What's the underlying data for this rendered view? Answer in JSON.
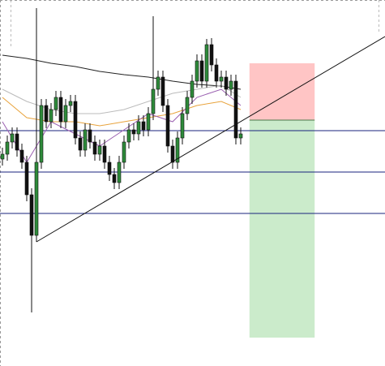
{
  "chart_data": {
    "type": "candlestick",
    "open": [
      255,
      261,
      276,
      286,
      266,
      251,
      211,
      161,
      251,
      321,
      301,
      316,
      331,
      301,
      321,
      326,
      281,
      266,
      291,
      276,
      261,
      271,
      251,
      236,
      226,
      251,
      276,
      291,
      286,
      301,
      291,
      311,
      341,
      356,
      321,
      271,
      251,
      281,
      311,
      331,
      351,
      376,
      351,
      396,
      371,
      351,
      356,
      341,
      351,
      281
    ],
    "high": [
      269,
      284,
      294,
      294,
      274,
      259,
      219,
      441,
      329,
      329,
      324,
      339,
      339,
      329,
      334,
      334,
      289,
      299,
      299,
      284,
      279,
      279,
      259,
      244,
      259,
      284,
      299,
      299,
      309,
      309,
      319,
      431,
      364,
      364,
      329,
      279,
      289,
      319,
      339,
      359,
      384,
      384,
      403,
      404,
      379,
      364,
      364,
      359,
      359,
      294
    ],
    "low": [
      247,
      253,
      268,
      258,
      243,
      203,
      66,
      153,
      243,
      293,
      293,
      308,
      293,
      293,
      313,
      273,
      258,
      258,
      268,
      253,
      253,
      243,
      228,
      218,
      218,
      243,
      268,
      278,
      278,
      283,
      283,
      303,
      333,
      313,
      263,
      243,
      243,
      273,
      303,
      323,
      343,
      343,
      343,
      363,
      343,
      343,
      333,
      333,
      273,
      273
    ],
    "close": [
      261,
      276,
      286,
      266,
      251,
      211,
      161,
      251,
      321,
      301,
      316,
      331,
      301,
      321,
      326,
      281,
      266,
      291,
      276,
      261,
      271,
      251,
      236,
      226,
      251,
      276,
      291,
      286,
      301,
      291,
      311,
      341,
      356,
      321,
      271,
      251,
      281,
      311,
      331,
      351,
      376,
      351,
      396,
      371,
      351,
      356,
      341,
      351,
      281,
      286
    ],
    "up_color": "#2e8b3a",
    "down_color": "#111111",
    "ylim": [
      0,
      451
    ],
    "moving_averages": [
      {
        "color": "#222222",
        "x": [
          0,
          5,
          10,
          15,
          20,
          25,
          30,
          35,
          40,
          45,
          49
        ],
        "values": [
          383,
          379,
          373,
          369,
          363,
          359,
          356,
          351,
          347,
          345,
          341
        ]
      },
      {
        "color": "#bbbbbb",
        "x": [
          0,
          5,
          10,
          15,
          20,
          25,
          30,
          35,
          40,
          45,
          49
        ],
        "values": [
          341,
          326,
          316,
          311,
          311,
          316,
          326,
          336,
          341,
          346,
          331
        ]
      },
      {
        "color": "#e8a33c",
        "x": [
          0,
          5,
          10,
          15,
          20,
          25,
          30,
          35,
          40,
          45,
          49
        ],
        "values": [
          331,
          306,
          301,
          301,
          296,
          301,
          306,
          311,
          321,
          326,
          316
        ]
      },
      {
        "color": "#9a5fb0",
        "x": [
          0,
          5,
          10,
          15,
          20,
          25,
          30,
          35,
          40,
          45,
          49
        ],
        "values": [
          301,
          251,
          301,
          286,
          271,
          291,
          311,
          301,
          331,
          341,
          321
        ]
      }
    ],
    "levels": [
      290,
      239,
      188
    ],
    "level_color": "#1a237e",
    "trendline": {
      "x": [
        7,
        78.67
      ],
      "values": [
        153,
        406
      ]
    },
    "position": {
      "x": [
        50.8,
        64.2
      ],
      "entry": 303,
      "stop": 373,
      "target": 35
    }
  }
}
